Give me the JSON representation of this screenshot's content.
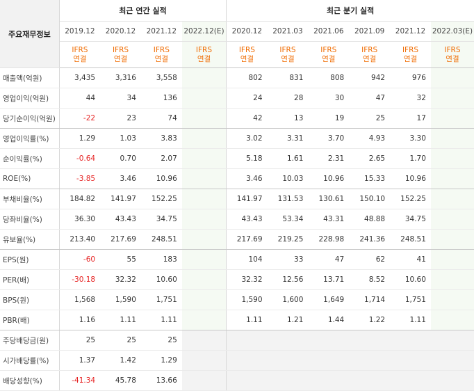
{
  "header": {
    "row_label": "주요재무정보",
    "annual_title": "최근 연간 실적",
    "quarter_title": "최근 분기 실적",
    "periods": [
      "2019.12",
      "2020.12",
      "2021.12",
      "2022.12(E)",
      "2020.12",
      "2021.03",
      "2021.06",
      "2021.09",
      "2021.12",
      "2022.03(E)"
    ],
    "ifrs_line1": "IFRS",
    "ifrs_line2": "연결"
  },
  "rows": [
    {
      "label": "매출액(억원)",
      "values": [
        "3,435",
        "3,316",
        "3,558",
        "",
        "802",
        "831",
        "808",
        "942",
        "976",
        ""
      ]
    },
    {
      "label": "영업이익(억원)",
      "values": [
        "44",
        "34",
        "136",
        "",
        "24",
        "28",
        "30",
        "47",
        "32",
        ""
      ]
    },
    {
      "label": "당기순이익(억원)",
      "values": [
        "-22",
        "23",
        "74",
        "",
        "42",
        "13",
        "19",
        "25",
        "17",
        ""
      ]
    },
    {
      "label": "영업이익률(%)",
      "values": [
        "1.29",
        "1.03",
        "3.83",
        "",
        "3.02",
        "3.31",
        "3.70",
        "4.93",
        "3.30",
        ""
      ]
    },
    {
      "label": "순이익률(%)",
      "values": [
        "-0.64",
        "0.70",
        "2.07",
        "",
        "5.18",
        "1.61",
        "2.31",
        "2.65",
        "1.70",
        ""
      ]
    },
    {
      "label": "ROE(%)",
      "values": [
        "-3.85",
        "3.46",
        "10.96",
        "",
        "3.46",
        "10.03",
        "10.96",
        "15.33",
        "10.96",
        ""
      ]
    },
    {
      "label": "부채비율(%)",
      "values": [
        "184.82",
        "141.97",
        "152.25",
        "",
        "141.97",
        "131.53",
        "130.61",
        "150.10",
        "152.25",
        ""
      ]
    },
    {
      "label": "당좌비율(%)",
      "values": [
        "36.30",
        "43.43",
        "34.75",
        "",
        "43.43",
        "53.34",
        "43.31",
        "48.88",
        "34.75",
        ""
      ]
    },
    {
      "label": "유보율(%)",
      "values": [
        "213.40",
        "217.69",
        "248.51",
        "",
        "217.69",
        "219.25",
        "228.98",
        "241.36",
        "248.51",
        ""
      ]
    },
    {
      "label": "EPS(원)",
      "values": [
        "-60",
        "55",
        "183",
        "",
        "104",
        "33",
        "47",
        "62",
        "41",
        ""
      ]
    },
    {
      "label": "PER(배)",
      "values": [
        "-30.18",
        "32.32",
        "10.60",
        "",
        "32.32",
        "12.56",
        "13.71",
        "8.52",
        "10.60",
        ""
      ]
    },
    {
      "label": "BPS(원)",
      "values": [
        "1,568",
        "1,590",
        "1,751",
        "",
        "1,590",
        "1,600",
        "1,649",
        "1,714",
        "1,751",
        ""
      ]
    },
    {
      "label": "PBR(배)",
      "values": [
        "1.16",
        "1.11",
        "1.11",
        "",
        "1.11",
        "1.21",
        "1.44",
        "1.22",
        "1.11",
        ""
      ]
    },
    {
      "label": "주당배당금(원)",
      "values": [
        "25",
        "25",
        "25",
        "",
        "",
        "",
        "",
        "",
        "",
        ""
      ]
    },
    {
      "label": "시가배당률(%)",
      "values": [
        "1.37",
        "1.42",
        "1.29",
        "",
        "",
        "",
        "",
        "",
        "",
        ""
      ]
    },
    {
      "label": "배당성향(%)",
      "values": [
        "-41.34",
        "45.78",
        "13.66",
        "",
        "",
        "",
        "",
        "",
        "",
        ""
      ]
    }
  ],
  "colors": {
    "negative": "#e62222",
    "ifrs": "#f06b00",
    "estimate_bg": "#f5faf3",
    "blank_bg": "#f3f3f3"
  }
}
